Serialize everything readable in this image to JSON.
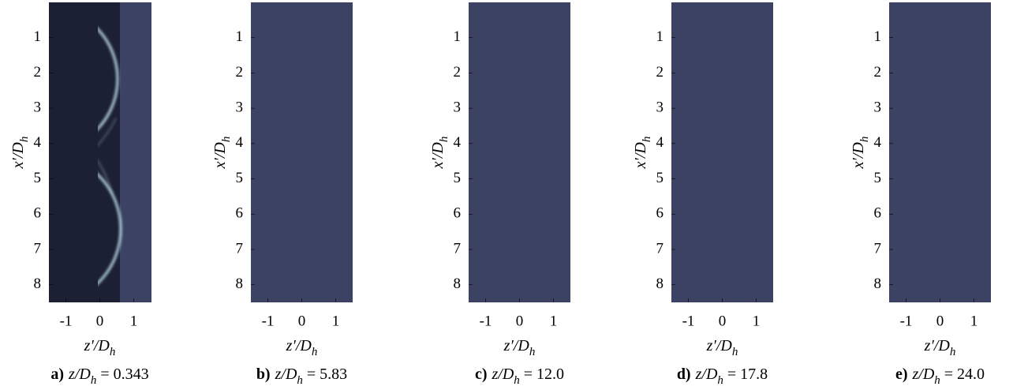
{
  "chart_data": [
    {
      "type": "image",
      "label": "a)",
      "caption": "z/D_h = 0.343",
      "xlabel": "z′/D_h",
      "ylabel": "x′/D_h",
      "xlim": [
        -1.5,
        1.5
      ],
      "ylim": [
        0,
        8.5
      ],
      "xticks": [
        -1,
        0,
        1
      ],
      "yticks": [
        1,
        2,
        3,
        4,
        5,
        6,
        7,
        8
      ]
    },
    {
      "type": "image",
      "label": "b)",
      "caption": "z/D_h = 5.83",
      "xlabel": "z′/D_h",
      "ylabel": "x′/D_h",
      "xlim": [
        -1.5,
        1.5
      ],
      "ylim": [
        0,
        8.5
      ],
      "xticks": [
        -1,
        0,
        1
      ],
      "yticks": [
        1,
        2,
        3,
        4,
        5,
        6,
        7,
        8
      ]
    },
    {
      "type": "image",
      "label": "c)",
      "caption": "z/D_h = 12.0",
      "xlabel": "z′/D_h",
      "ylabel": "x′/D_h",
      "xlim": [
        -1.5,
        1.5
      ],
      "ylim": [
        0,
        8.5
      ],
      "xticks": [
        -1,
        0,
        1
      ],
      "yticks": [
        1,
        2,
        3,
        4,
        5,
        6,
        7,
        8
      ]
    },
    {
      "type": "image",
      "label": "d)",
      "caption": "z/D_h = 17.8",
      "xlabel": "z′/D_h",
      "ylabel": "x′/D_h",
      "xlim": [
        -1.5,
        1.5
      ],
      "ylim": [
        0,
        8.5
      ],
      "xticks": [
        -1,
        0,
        1
      ],
      "yticks": [
        1,
        2,
        3,
        4,
        5,
        6,
        7,
        8
      ]
    },
    {
      "type": "image",
      "label": "e)",
      "caption": "z/D_h = 24.0",
      "xlabel": "z′/D_h",
      "ylabel": "x′/D_h",
      "xlim": [
        -1.5,
        1.5
      ],
      "ylim": [
        0,
        8.5
      ],
      "xticks": [
        -1,
        0,
        1
      ],
      "yticks": [
        1,
        2,
        3,
        4,
        5,
        6,
        7,
        8
      ]
    }
  ]
}
